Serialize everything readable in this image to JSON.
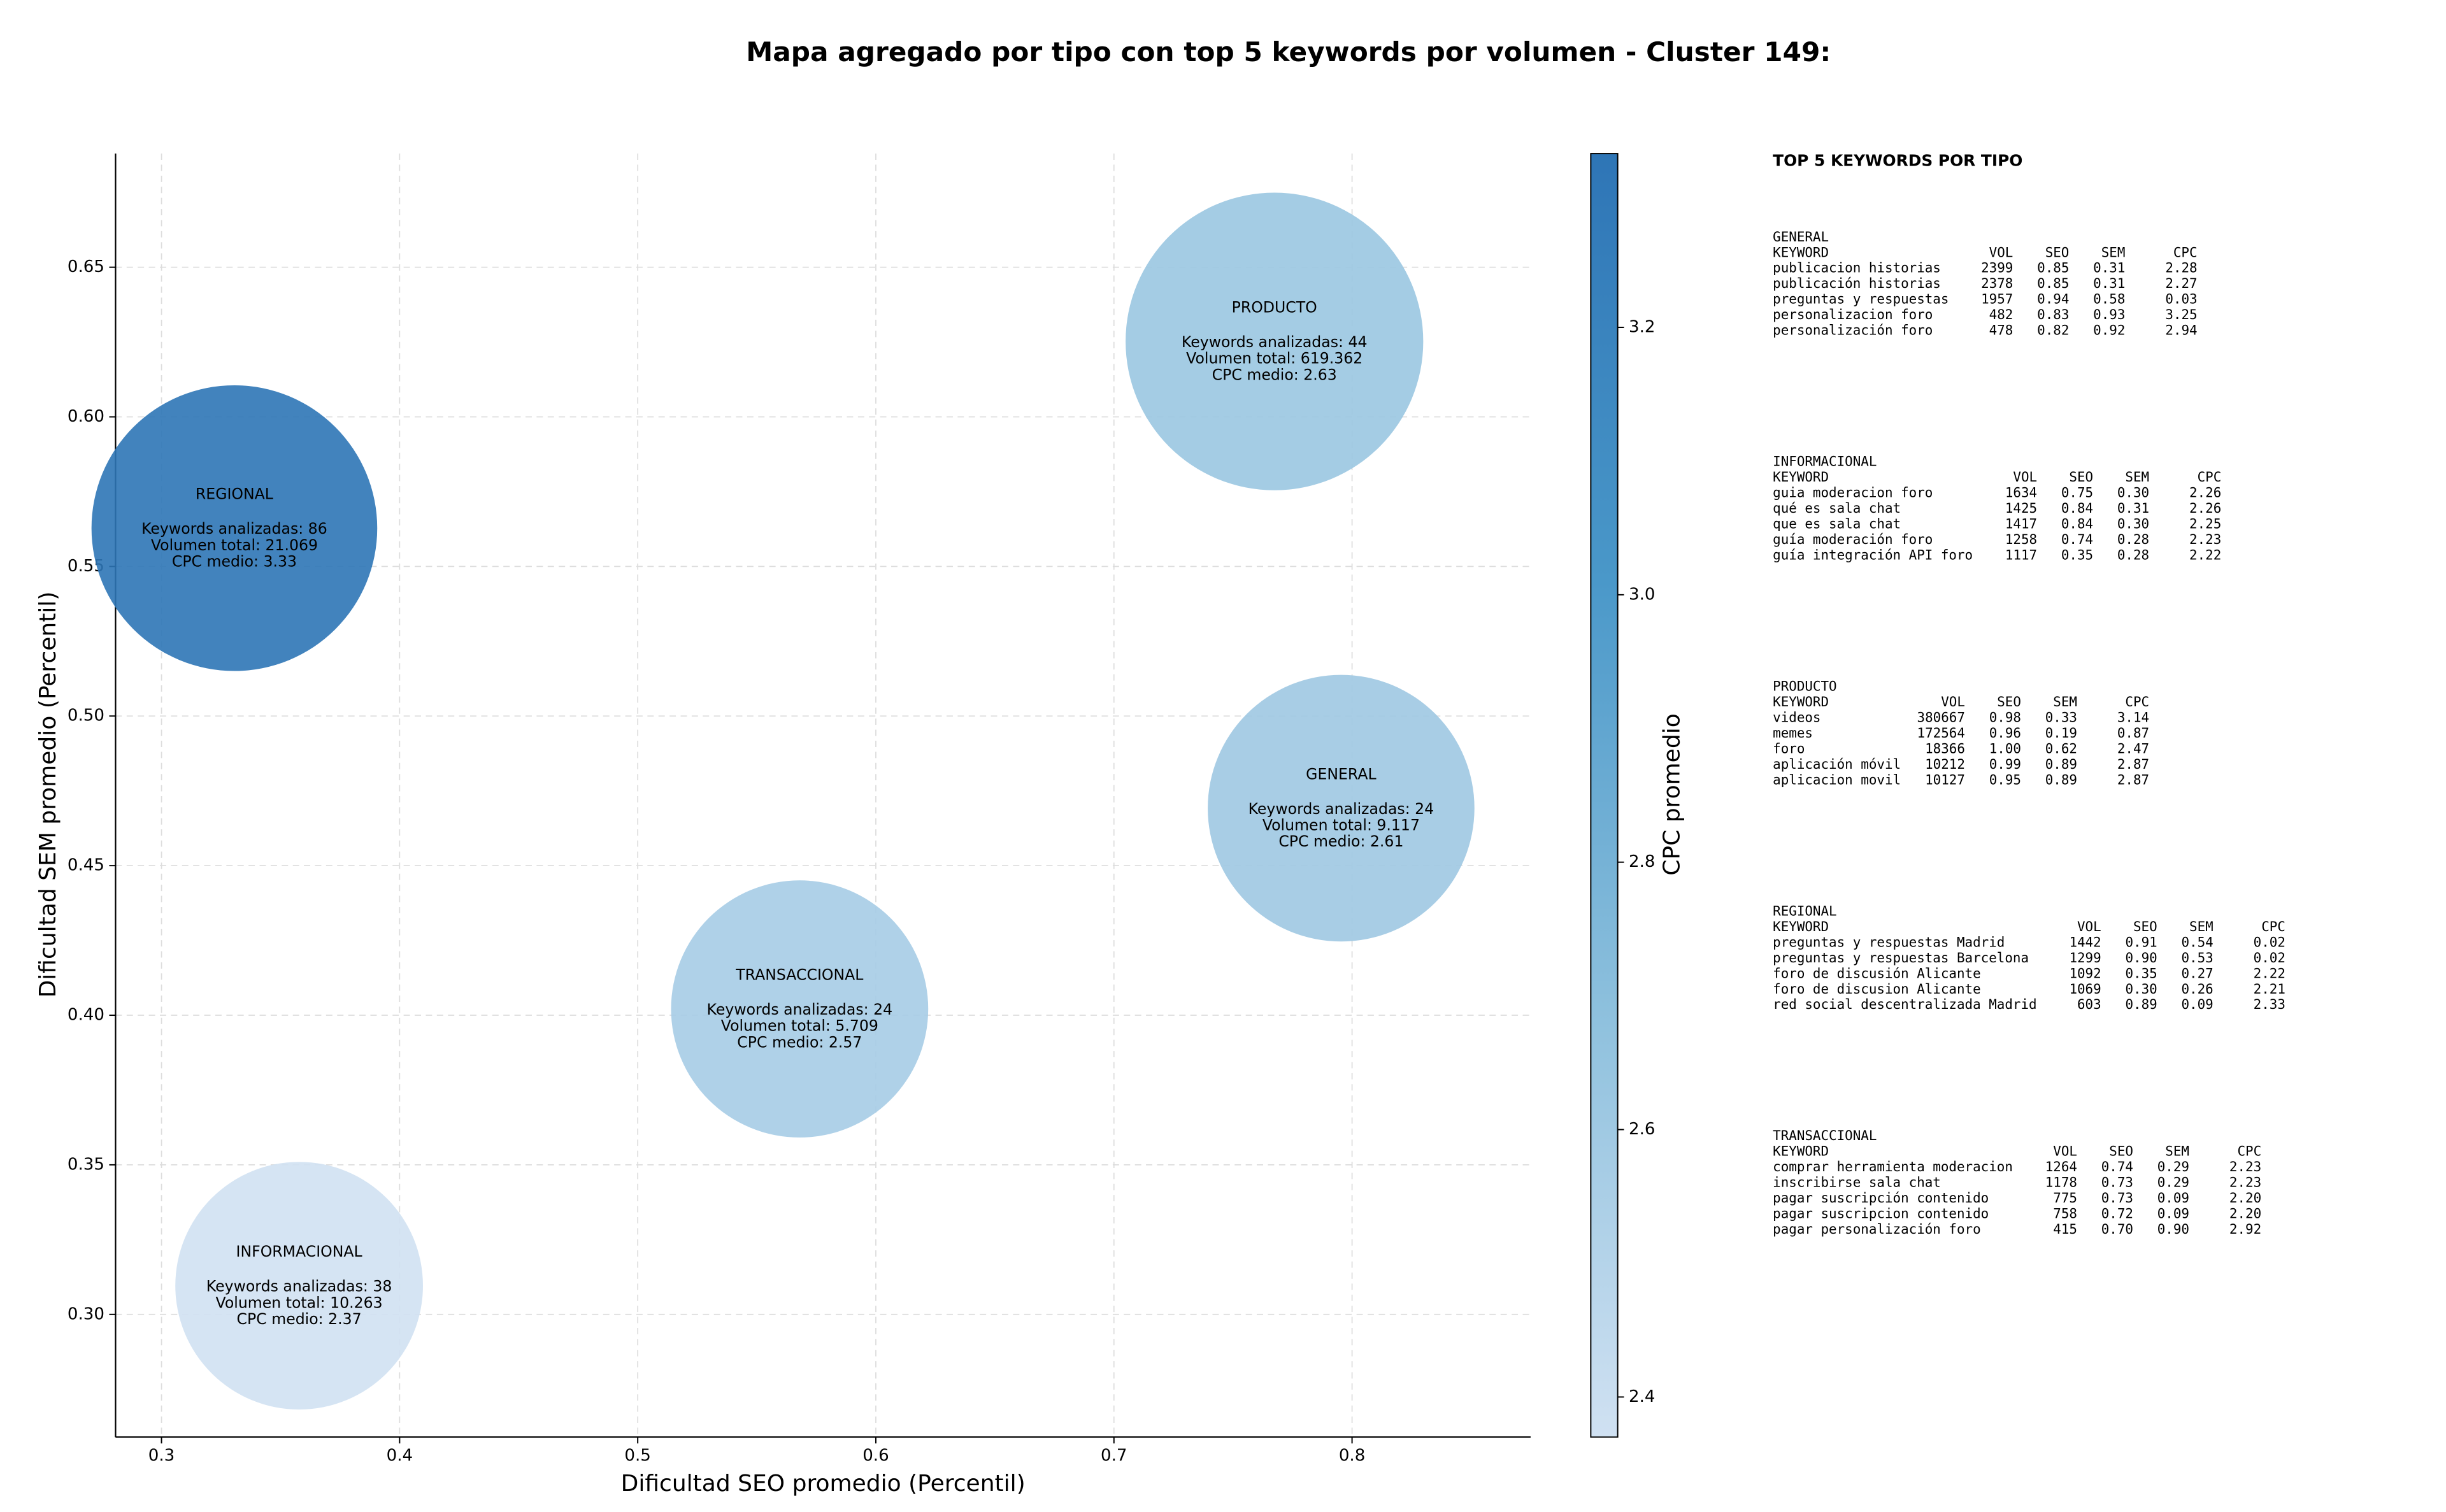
{
  "chart_data": {
    "type": "bubble",
    "title": "Mapa agregado por tipo con top 5 keywords por volumen - Cluster 149:",
    "xlabel": "Dificultad SEO promedio (Percentil)",
    "ylabel": "Dificultad SEM promedio (Percentil)",
    "xlim": [
      0.2807,
      0.875
    ],
    "ylim": [
      0.259,
      0.688
    ],
    "xticks": [
      0.3,
      0.4,
      0.5,
      0.6,
      0.7,
      0.8
    ],
    "yticks": [
      {
        "value": 0.3,
        "label": "0.30"
      },
      {
        "value": 0.35,
        "label": "0.35"
      },
      {
        "value": 0.4,
        "label": "0.40"
      },
      {
        "value": 0.45,
        "label": "0.45"
      },
      {
        "value": 0.5,
        "label": "0.50"
      },
      {
        "value": 0.55,
        "label": "0.55"
      },
      {
        "value": 0.6,
        "label": "0.60"
      },
      {
        "value": 0.65,
        "label": "0.65"
      }
    ],
    "grid": true,
    "colorbar": {
      "label": "CPC promedio",
      "clim": [
        2.37,
        3.33
      ],
      "ticks": [
        2.4,
        2.6,
        2.8,
        {
          "value": 3.0,
          "label": "3.0"
        },
        3.2
      ],
      "colors": [
        "#d0e1f2",
        "#8dc0dd",
        "#4a98c9",
        "#2e75b6"
      ]
    },
    "points": [
      {
        "name": "REGIONAL",
        "x": 0.3306,
        "y": 0.5628,
        "size": 0.06,
        "keywords": 86,
        "volume": 21069,
        "cpc": 3.33,
        "value_labels": [
          "Keywords analizadas: 86",
          "Volumen total: 21.069",
          "CPC medio: 3.33"
        ]
      },
      {
        "name": "PRODUCTO",
        "x": 0.7674,
        "y": 0.6252,
        "size": 0.0625,
        "keywords": 44,
        "volume": 619362,
        "cpc": 2.63,
        "value_labels": [
          "Keywords analizadas: 44",
          "Volumen total: 619.362",
          "CPC medio: 2.63"
        ]
      },
      {
        "name": "GENERAL",
        "x": 0.7954,
        "y": 0.4692,
        "size": 0.056,
        "keywords": 24,
        "volume": 9117,
        "cpc": 2.61,
        "value_labels": [
          "Keywords analizadas: 24",
          "Volumen total: 9.117",
          "CPC medio: 2.61"
        ]
      },
      {
        "name": "TRANSACCIONAL",
        "x": 0.568,
        "y": 0.4021,
        "size": 0.054,
        "keywords": 24,
        "volume": 5709,
        "cpc": 2.57,
        "value_labels": [
          "Keywords analizadas: 24",
          "Volumen total: 5.709",
          "CPC medio: 2.57"
        ]
      },
      {
        "name": "INFORMACIONAL",
        "x": 0.3578,
        "y": 0.3096,
        "size": 0.052,
        "keywords": 38,
        "volume": 10263,
        "cpc": 2.37,
        "value_labels": [
          "Keywords analizadas: 38",
          "Volumen total: 10.263",
          "CPC medio: 2.37"
        ]
      }
    ]
  },
  "panel": {
    "title": "TOP 5 KEYWORDS POR TIPO",
    "sections": [
      {
        "title": "GENERAL",
        "columns": [
          "KEYWORD",
          "VOL",
          "SEO",
          "SEM",
          "CPC"
        ],
        "rows": [
          [
            "publicacion historias",
            "2399",
            "0.85",
            "0.31",
            "2.28"
          ],
          [
            "publicación historias",
            "2378",
            "0.85",
            "0.31",
            "2.27"
          ],
          [
            "preguntas y respuestas",
            "1957",
            "0.94",
            "0.58",
            "0.03"
          ],
          [
            "personalizacion foro",
            "482",
            "0.83",
            "0.93",
            "3.25"
          ],
          [
            "personalización foro",
            "478",
            "0.82",
            "0.92",
            "2.94"
          ]
        ]
      },
      {
        "title": "INFORMACIONAL",
        "columns": [
          "KEYWORD",
          "VOL",
          "SEO",
          "SEM",
          "CPC"
        ],
        "rows": [
          [
            "guia moderacion foro",
            "1634",
            "0.75",
            "0.30",
            "2.26"
          ],
          [
            "qué es sala chat",
            "1425",
            "0.84",
            "0.31",
            "2.26"
          ],
          [
            "que es sala chat",
            "1417",
            "0.84",
            "0.30",
            "2.25"
          ],
          [
            "guía moderación foro",
            "1258",
            "0.74",
            "0.28",
            "2.23"
          ],
          [
            "guía integración API foro",
            "1117",
            "0.35",
            "0.28",
            "2.22"
          ]
        ]
      },
      {
        "title": "PRODUCTO",
        "columns": [
          "KEYWORD",
          "VOL",
          "SEO",
          "SEM",
          "CPC"
        ],
        "rows": [
          [
            "videos",
            "380667",
            "0.98",
            "0.33",
            "3.14"
          ],
          [
            "memes",
            "172564",
            "0.96",
            "0.19",
            "0.87"
          ],
          [
            "foro",
            "18366",
            "1.00",
            "0.62",
            "2.47"
          ],
          [
            "aplicación móvil",
            "10212",
            "0.99",
            "0.89",
            "2.87"
          ],
          [
            "aplicacion movil",
            "10127",
            "0.95",
            "0.89",
            "2.87"
          ]
        ]
      },
      {
        "title": "REGIONAL",
        "columns": [
          "KEYWORD",
          "VOL",
          "SEO",
          "SEM",
          "CPC"
        ],
        "rows": [
          [
            "preguntas y respuestas Madrid",
            "1442",
            "0.91",
            "0.54",
            "0.02"
          ],
          [
            "preguntas y respuestas Barcelona",
            "1299",
            "0.90",
            "0.53",
            "0.02"
          ],
          [
            "foro de discusión Alicante",
            "1092",
            "0.35",
            "0.27",
            "2.22"
          ],
          [
            "foro de discusion Alicante",
            "1069",
            "0.30",
            "0.26",
            "2.21"
          ],
          [
            "red social descentralizada Madrid",
            "603",
            "0.89",
            "0.09",
            "2.33"
          ]
        ]
      },
      {
        "title": "TRANSACCIONAL",
        "columns": [
          "KEYWORD",
          "VOL",
          "SEO",
          "SEM",
          "CPC"
        ],
        "rows": [
          [
            "comprar herramienta moderacion",
            "1264",
            "0.74",
            "0.29",
            "2.23"
          ],
          [
            "inscribirse sala chat",
            "1178",
            "0.73",
            "0.29",
            "2.23"
          ],
          [
            "pagar suscripción contenido",
            "775",
            "0.73",
            "0.09",
            "2.20"
          ],
          [
            "pagar suscripcion contenido",
            "758",
            "0.72",
            "0.09",
            "2.20"
          ],
          [
            "pagar personalización foro",
            "415",
            "0.70",
            "0.90",
            "2.92"
          ]
        ]
      }
    ]
  }
}
